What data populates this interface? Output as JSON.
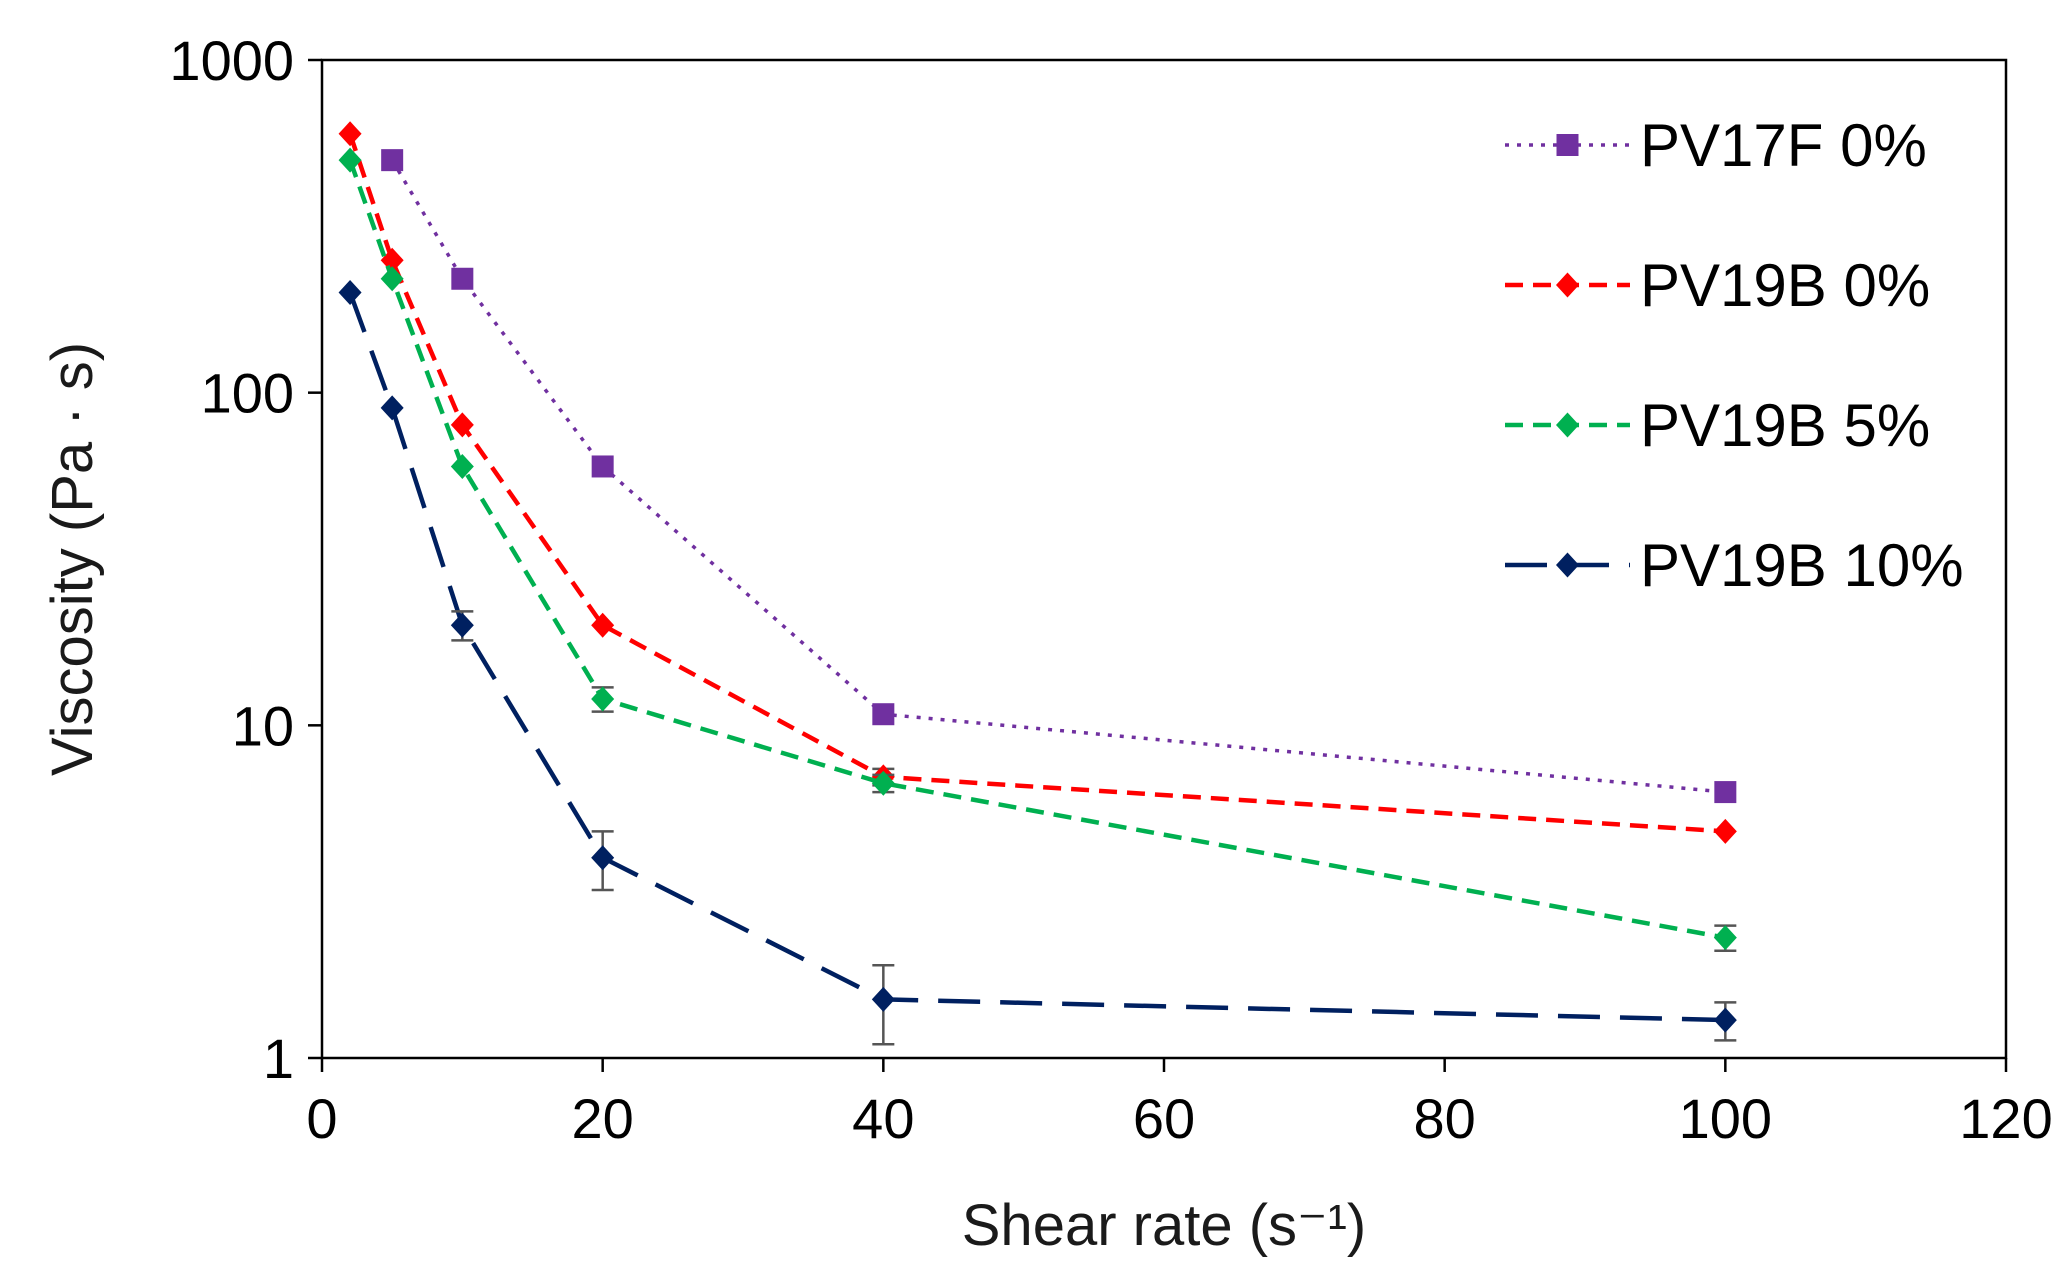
{
  "chart_data": {
    "type": "line",
    "title": "",
    "xlabel": "Shear rate (s⁻¹)",
    "ylabel": "Viscosity (Pa · s)",
    "xlim": [
      0,
      120
    ],
    "ylim": [
      1,
      1000
    ],
    "yscale": "log",
    "x_ticks": [
      0,
      20,
      40,
      60,
      80,
      100,
      120
    ],
    "y_ticks": [
      1,
      10,
      100,
      1000
    ],
    "legend_position": "top-right",
    "grid": false,
    "series": [
      {
        "name": "PV17F 0%",
        "color": "#7030a0",
        "line_style": "dotted",
        "marker": "square",
        "x": [
          5,
          10,
          20,
          40,
          100
        ],
        "y": [
          500,
          220,
          60,
          10.8,
          6.3
        ],
        "err": [
          0,
          0,
          0,
          0,
          0
        ]
      },
      {
        "name": "PV19B 0%",
        "color": "#ff0000",
        "line_style": "dashed",
        "marker": "diamond",
        "x": [
          2,
          5,
          10,
          20,
          40,
          100
        ],
        "y": [
          600,
          250,
          80,
          20,
          7.0,
          4.8
        ],
        "err": [
          0,
          0,
          0,
          0,
          0.4,
          0
        ]
      },
      {
        "name": "PV19B 5%",
        "color": "#00b050",
        "line_style": "dashed",
        "marker": "diamond",
        "x": [
          2,
          5,
          10,
          20,
          40,
          100
        ],
        "y": [
          500,
          220,
          60,
          12,
          6.7,
          2.3
        ],
        "err": [
          0,
          0,
          0,
          1.0,
          0.4,
          0.2
        ]
      },
      {
        "name": "PV19B 10%",
        "color": "#002060",
        "line_style": "longdash",
        "marker": "diamond",
        "x": [
          2,
          5,
          10,
          20,
          40,
          100
        ],
        "y": [
          200,
          90,
          20,
          4.0,
          1.5,
          1.3
        ],
        "err": [
          0,
          0,
          2.0,
          0.8,
          0.4,
          0.17
        ]
      }
    ]
  }
}
